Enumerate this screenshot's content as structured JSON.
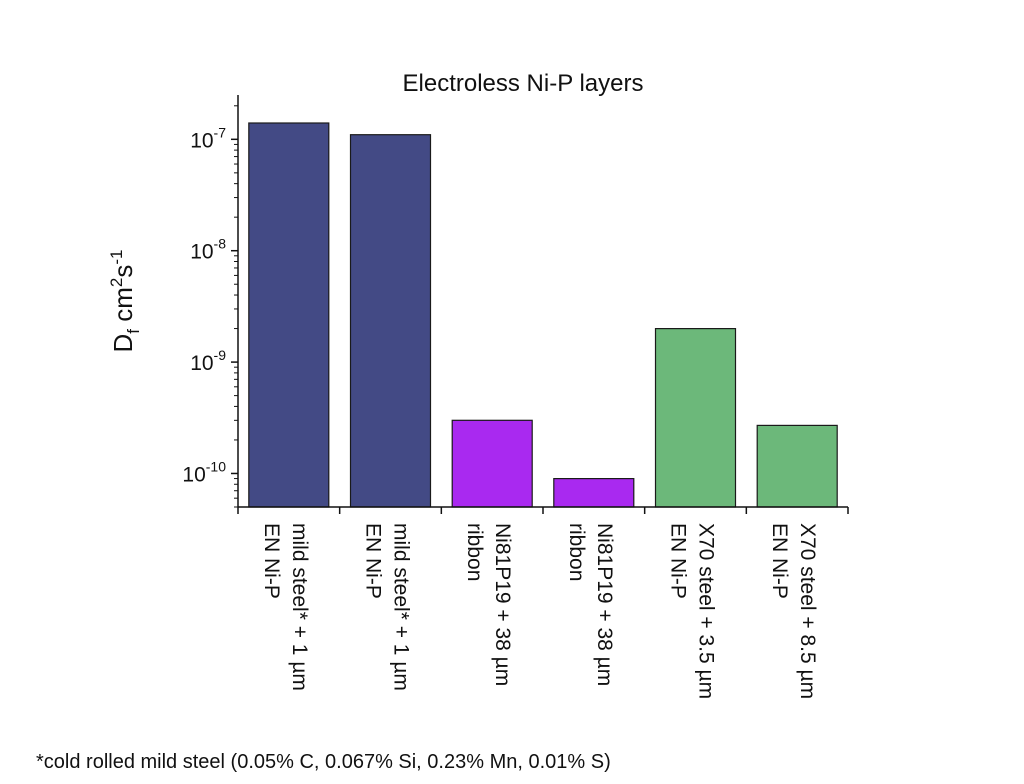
{
  "chart_data": {
    "type": "bar",
    "title": "Electroless Ni-P layers",
    "ylabel": {
      "base": "D",
      "sub": "f",
      "unit1": " cm",
      "sup1": "2",
      "unit2": "s",
      "sup2": "-1"
    },
    "xlabel": "",
    "yscale": "log",
    "ylim": [
      5e-11,
      2.5e-07
    ],
    "yticks": [
      {
        "value": 1e-07,
        "base": "10",
        "exp": "-7"
      },
      {
        "value": 1e-08,
        "base": "10",
        "exp": "-8"
      },
      {
        "value": 1e-09,
        "base": "10",
        "exp": "-9"
      },
      {
        "value": 1e-10,
        "base": "10",
        "exp": "-10"
      }
    ],
    "grid": false,
    "categories": [
      {
        "line1": "mild steel* + 1 µm",
        "line2": "EN Ni-P"
      },
      {
        "line1": "mild steel* + 1 µm",
        "line2": "EN Ni-P"
      },
      {
        "line1": "Ni81P19 + 38 µm",
        "line2": "ribbon"
      },
      {
        "line1": "Ni81P19 + 38 µm",
        "line2": "ribbon"
      },
      {
        "line1": "X70 steel + 3.5 µm",
        "line2": "EN Ni-P"
      },
      {
        "line1": "X70 steel + 8.5 µm",
        "line2": "EN Ni-P"
      }
    ],
    "values": [
      1.4e-07,
      1.1e-07,
      3e-10,
      9e-11,
      2e-09,
      2.7e-10
    ],
    "colors": [
      "#434a85",
      "#434a85",
      "#a929f0",
      "#a929f0",
      "#6cb87a",
      "#6cb87a"
    ],
    "footnote": "*cold rolled mild steel (0.05% C, 0.067% Si, 0.23% Mn, 0.01% S)"
  }
}
